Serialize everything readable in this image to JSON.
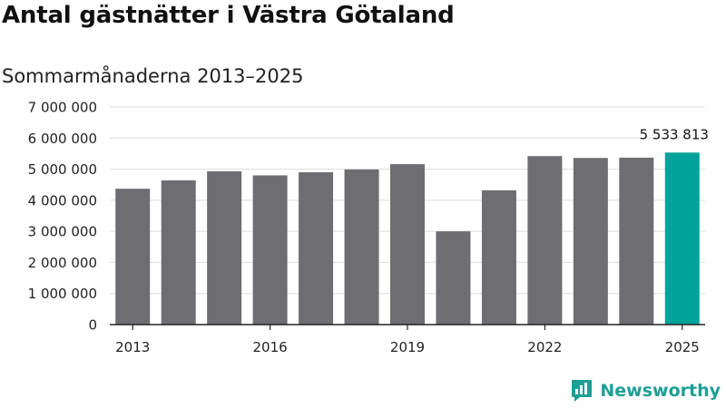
{
  "title": "Antal gästnätter i Västra Götaland",
  "subtitle": "Sommarmånaderna 2013–2025",
  "brand": {
    "name": "Newsworthy",
    "icon": "newsworthy-logo-icon"
  },
  "colors": {
    "bar": "#6e6d72",
    "highlight": "#00a39b",
    "grid": "#dddddd",
    "axis": "#222222",
    "brand": "#1d9f96"
  },
  "chart_data": {
    "type": "bar",
    "title": "Antal gästnätter i Västra Götaland",
    "subtitle": "Sommarmånaderna 2013–2025",
    "xlabel": "",
    "ylabel": "",
    "categories": [
      "2013",
      "2014",
      "2015",
      "2016",
      "2017",
      "2018",
      "2019",
      "2020",
      "2021",
      "2022",
      "2023",
      "2024",
      "2025"
    ],
    "values": [
      4370000,
      4640000,
      4930000,
      4800000,
      4900000,
      4990000,
      5160000,
      3000000,
      4320000,
      5420000,
      5360000,
      5370000,
      5533813
    ],
    "ylim": [
      0,
      7000000
    ],
    "yticks": [
      0,
      1000000,
      2000000,
      3000000,
      4000000,
      5000000,
      6000000,
      7000000
    ],
    "ytick_labels": [
      "0",
      "1 000 000",
      "2 000 000",
      "3 000 000",
      "4 000 000",
      "5 000 000",
      "6 000 000",
      "7 000 000"
    ],
    "xtick_labels": [
      "2013",
      "2016",
      "2019",
      "2022",
      "2025"
    ],
    "highlight_index": 12,
    "annotation": {
      "index": 12,
      "text": "5 533 813"
    },
    "grid": true,
    "legend": "none"
  }
}
